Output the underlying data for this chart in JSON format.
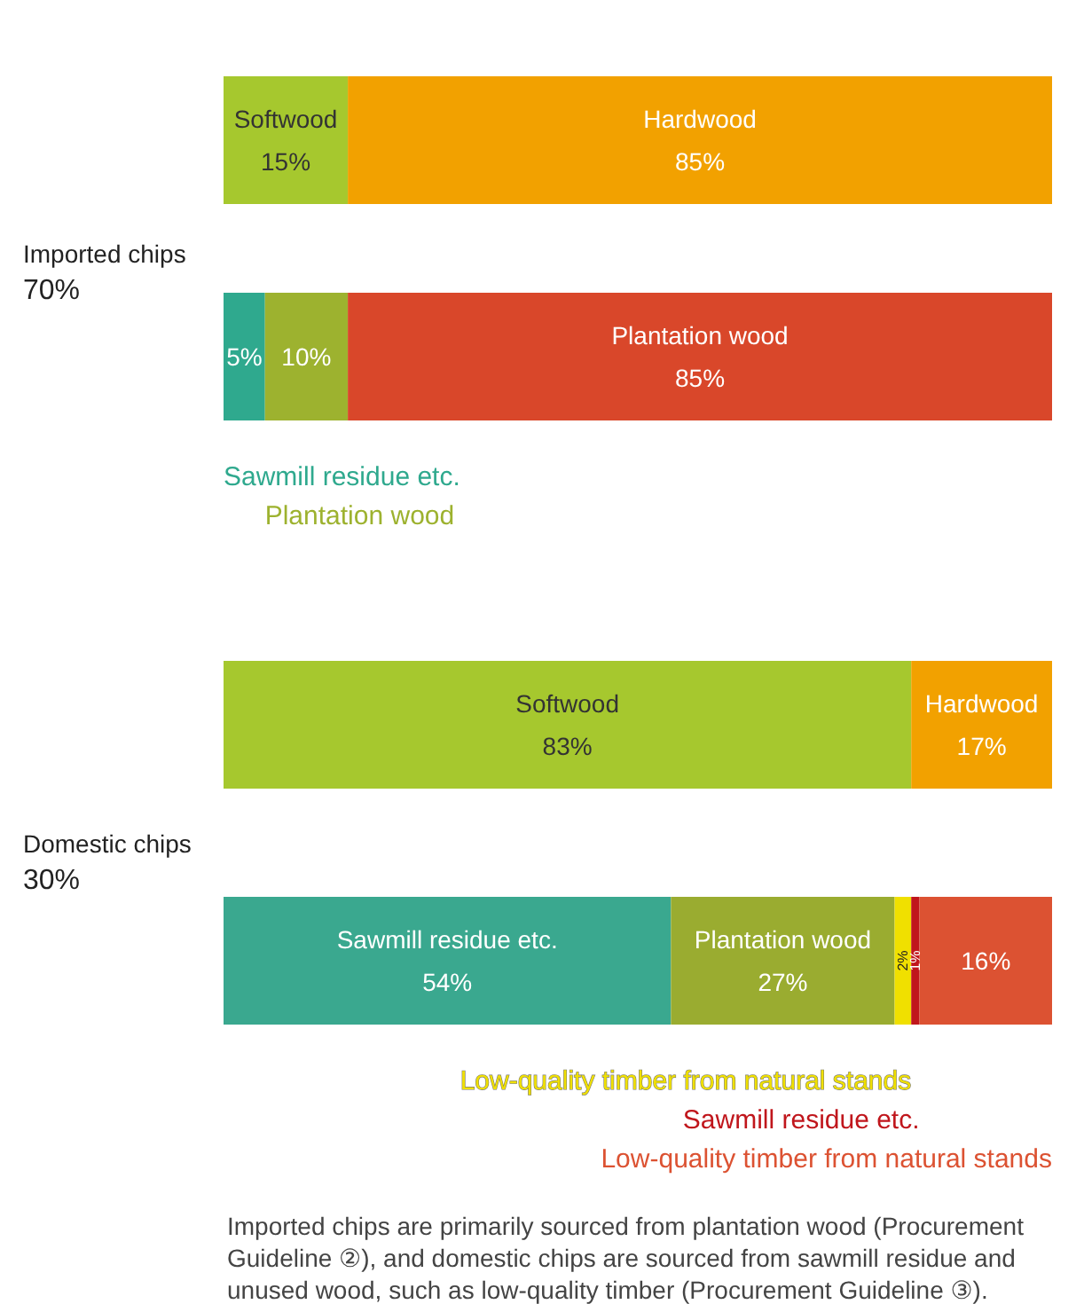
{
  "chart_data": [
    {
      "type": "bar",
      "title": "Imported chips",
      "subtitle": "70%",
      "orientation": "horizontal",
      "stacked": true,
      "categories": [
        null,
        null
      ],
      "xlim": [
        0,
        100
      ],
      "tick_labels": false,
      "series": [
        {
          "name": "Softwood",
          "color": "#a6c82e",
          "values": [
            15,
            null
          ],
          "value_labels": [
            "15%",
            null
          ]
        },
        {
          "name": "Hardwood",
          "color": "#f2a100",
          "values": [
            85,
            null
          ],
          "value_labels": [
            "85%",
            null
          ]
        },
        {
          "name": "Sawmill residue etc.",
          "color": "#2fa98e",
          "values": [
            null,
            5
          ],
          "value_labels": [
            null,
            "5%"
          ]
        },
        {
          "name": "Plantation wood",
          "color": "#9db22f",
          "values": [
            null,
            10
          ],
          "value_labels": [
            null,
            "10%"
          ]
        },
        {
          "name": "Plantation wood",
          "color": "#d9472a",
          "values": [
            null,
            85
          ],
          "value_labels": [
            null,
            "85%"
          ]
        }
      ]
    },
    {
      "type": "bar",
      "title": "Domestic chips",
      "subtitle": "30%",
      "orientation": "horizontal",
      "stacked": true,
      "categories": [
        null,
        null
      ],
      "xlim": [
        0,
        100
      ],
      "tick_labels": false,
      "series": [
        {
          "name": "Softwood",
          "color": "#a6c82e",
          "values": [
            83,
            null
          ],
          "value_labels": [
            "83%",
            null
          ]
        },
        {
          "name": "Hardwood",
          "color": "#f2a100",
          "values": [
            17,
            null
          ],
          "value_labels": [
            "17%",
            null
          ]
        },
        {
          "name": "Sawmill residue etc.",
          "color": "#3aa88f",
          "values": [
            null,
            54
          ],
          "value_labels": [
            null,
            "54%"
          ]
        },
        {
          "name": "Plantation wood",
          "color": "#9aac30",
          "values": [
            null,
            27
          ],
          "value_labels": [
            null,
            "27%"
          ]
        },
        {
          "name": "Low-quality timber from natural stands",
          "color": "#f0e000",
          "values": [
            null,
            2
          ],
          "value_labels": [
            null,
            "2%"
          ]
        },
        {
          "name": "Sawmill residue etc.",
          "color": "#c0161c",
          "values": [
            null,
            1
          ],
          "value_labels": [
            null,
            "1%"
          ]
        },
        {
          "name": "Low-quality timber from natural stands",
          "color": "#dc5232",
          "values": [
            null,
            16
          ],
          "value_labels": [
            null,
            "16%"
          ]
        }
      ],
      "annotations": [
        "Imported chips are primarily sourced from plantation wood (Procurement Guideline ②), and domestic chips are sourced from sawmill residue and unused wood, such as low-quality timber (Procurement Guideline ③)."
      ]
    }
  ]
}
